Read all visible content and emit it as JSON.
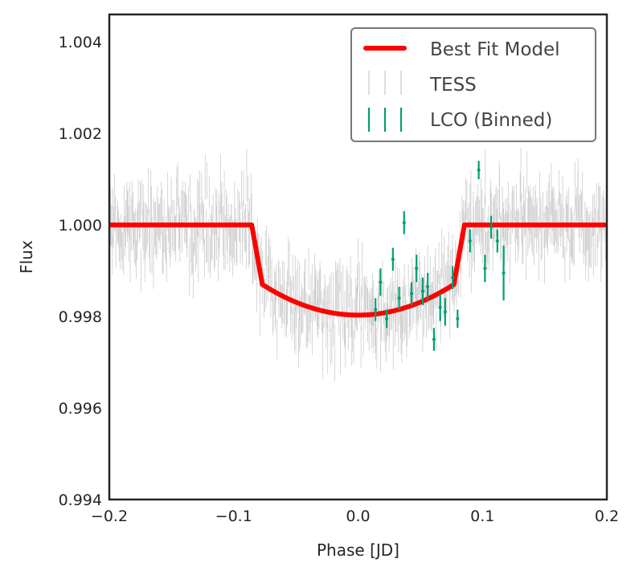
{
  "chart_data": {
    "type": "scatter",
    "title": "",
    "xlabel": "Phase [JD]",
    "ylabel": "Flux",
    "xlim": [
      -0.2,
      0.2
    ],
    "ylim": [
      0.994,
      1.0046
    ],
    "grid": false,
    "legend_position": "top-right",
    "x_ticks": [
      -0.2,
      -0.1,
      0.0,
      0.1,
      0.2
    ],
    "x_tick_labels": [
      "−0.2",
      "−0.1",
      "0.0",
      "0.1",
      "0.2"
    ],
    "y_ticks": [
      0.994,
      0.996,
      0.998,
      1.0,
      1.002,
      1.004
    ],
    "y_tick_labels": [
      "0.994",
      "0.996",
      "0.998",
      "1.000",
      "1.002",
      "1.004"
    ],
    "colors": {
      "model": "#ff0000",
      "tess": "#bbbbbb",
      "lco": "#009e73",
      "axes": "#262626",
      "legend_border": "#777777"
    },
    "legend": [
      {
        "label": "Best Fit Model",
        "kind": "line"
      },
      {
        "label": "TESS",
        "kind": "tess"
      },
      {
        "label": "LCO (Binned)",
        "kind": "lco"
      }
    ],
    "series": [
      {
        "name": "Best Fit Model",
        "kind": "transit_model",
        "baseline": 1.0,
        "transit_start": -0.0855,
        "transit_end": 0.0855,
        "ingress_duration": 0.0085,
        "depth_at_contact": 0.0013,
        "depth_center": 0.00197
      },
      {
        "name": "TESS",
        "kind": "dense_scatter",
        "x_range": [
          -0.2,
          0.2
        ],
        "count": 620,
        "scatter_sigma": 0.00055,
        "typical_error": 0.0005
      },
      {
        "name": "LCO (Binned)",
        "kind": "errorbar",
        "points": [
          {
            "x": 0.014,
            "y": 0.99815,
            "err": 0.00025
          },
          {
            "x": 0.018,
            "y": 0.99875,
            "err": 0.0003
          },
          {
            "x": 0.023,
            "y": 0.99795,
            "err": 0.0002
          },
          {
            "x": 0.028,
            "y": 0.99925,
            "err": 0.00025
          },
          {
            "x": 0.033,
            "y": 0.9984,
            "err": 0.00025
          },
          {
            "x": 0.037,
            "y": 1.00005,
            "err": 0.00025
          },
          {
            "x": 0.043,
            "y": 0.9985,
            "err": 0.00025
          },
          {
            "x": 0.047,
            "y": 0.99905,
            "err": 0.0003
          },
          {
            "x": 0.052,
            "y": 0.99855,
            "err": 0.0003
          },
          {
            "x": 0.056,
            "y": 0.99865,
            "err": 0.0003
          },
          {
            "x": 0.061,
            "y": 0.9975,
            "err": 0.00025
          },
          {
            "x": 0.066,
            "y": 0.9982,
            "err": 0.0003
          },
          {
            "x": 0.07,
            "y": 0.9981,
            "err": 0.0003
          },
          {
            "x": 0.076,
            "y": 0.99885,
            "err": 0.00025
          },
          {
            "x": 0.08,
            "y": 0.99795,
            "err": 0.0002
          },
          {
            "x": 0.09,
            "y": 0.99965,
            "err": 0.00025
          },
          {
            "x": 0.097,
            "y": 1.0012,
            "err": 0.0002
          },
          {
            "x": 0.102,
            "y": 0.99905,
            "err": 0.0003
          },
          {
            "x": 0.107,
            "y": 0.99995,
            "err": 0.00025
          },
          {
            "x": 0.112,
            "y": 0.99965,
            "err": 0.00025
          },
          {
            "x": 0.117,
            "y": 0.99895,
            "err": 0.0006
          }
        ]
      }
    ]
  }
}
